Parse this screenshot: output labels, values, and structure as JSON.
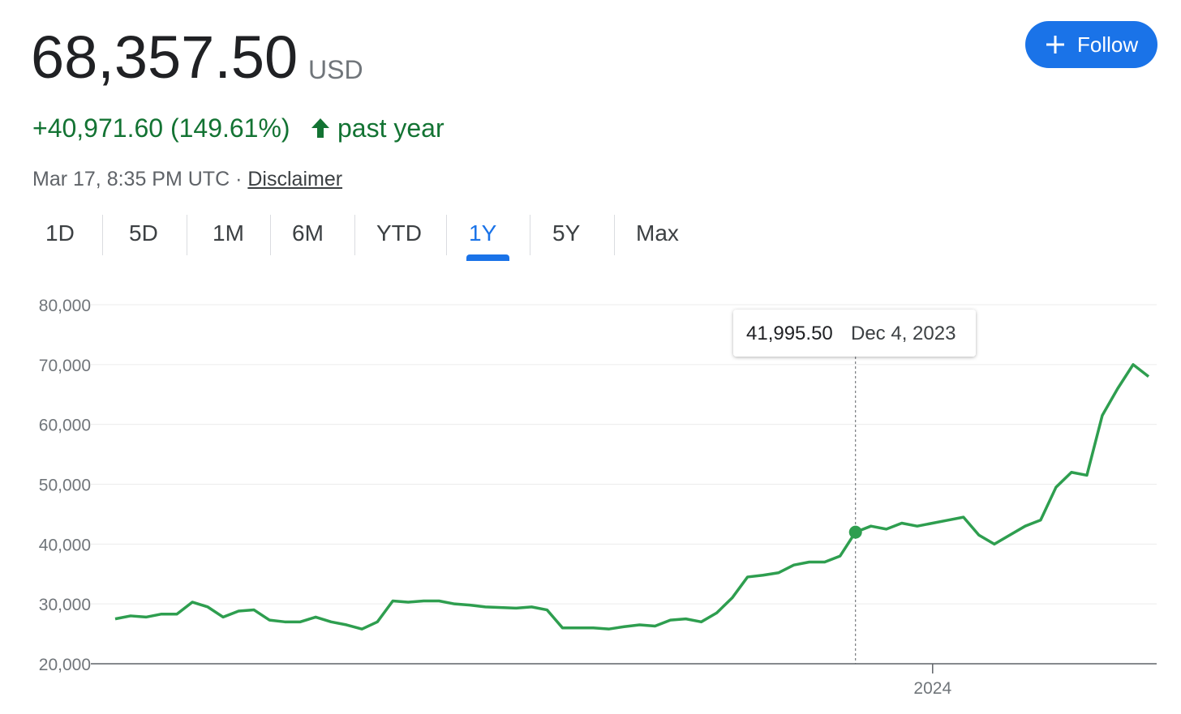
{
  "header": {
    "price": "68,357.50",
    "currency": "USD",
    "change": "+40,971.60 (149.61%)",
    "period": "past year",
    "timestamp": "Mar 17, 8:35 PM UTC",
    "separator": "·",
    "disclaimer": "Disclaimer",
    "follow": "Follow"
  },
  "tabs": [
    "1D",
    "5D",
    "1M",
    "6M",
    "YTD",
    "1Y",
    "5Y",
    "Max"
  ],
  "chart_data": {
    "type": "line",
    "categories": [
      null,
      null,
      null,
      null,
      null,
      null,
      null,
      null,
      null,
      null,
      null,
      null,
      null,
      null,
      null,
      null,
      null,
      null,
      null,
      null,
      null,
      null,
      null,
      null,
      null,
      null,
      null,
      null,
      null,
      null,
      null,
      null,
      null,
      null,
      null,
      null,
      null,
      null,
      null,
      null,
      null,
      null,
      null,
      null,
      null,
      null,
      null,
      null,
      null,
      null,
      null,
      null,
      null,
      "2024",
      null,
      null,
      null,
      null,
      null,
      null,
      null,
      null,
      null,
      null,
      null,
      null,
      null,
      null
    ],
    "series": [
      {
        "name": null,
        "color": "#2e9e4f",
        "values": [
          27500,
          28000,
          27800,
          28300,
          28300,
          30300,
          29500,
          27800,
          28800,
          29000,
          27300,
          27000,
          27000,
          27800,
          27000,
          26500,
          25800,
          27000,
          30500,
          30300,
          30500,
          30500,
          30000,
          29800,
          29500,
          29400,
          29300,
          29500,
          29000,
          26000,
          26000,
          26000,
          25800,
          26200,
          26500,
          26300,
          27300,
          27500,
          27000,
          28500,
          31000,
          34500,
          34800,
          35200,
          36500,
          37000,
          37000,
          38000,
          41995.5,
          43000,
          42500,
          43500,
          43000,
          43500,
          44000,
          44500,
          41500,
          40000,
          41500,
          43000,
          44000,
          49500,
          52000,
          51500,
          61500,
          66000,
          70000,
          68000
        ]
      }
    ],
    "ylim": [
      20000,
      80000
    ],
    "yticks": [
      {
        "value": 20000,
        "label": "20,000"
      },
      {
        "value": 30000,
        "label": "30,000"
      },
      {
        "value": 40000,
        "label": "40,000"
      },
      {
        "value": 50000,
        "label": "50,000"
      },
      {
        "value": 60000,
        "label": "60,000"
      },
      {
        "value": 70000,
        "label": "70,000"
      },
      {
        "value": 80000,
        "label": "80,000"
      }
    ],
    "grid": true,
    "annotation": {
      "value": 41995.5,
      "value_label": "41,995.50",
      "date": "Dec 4, 2023"
    }
  }
}
